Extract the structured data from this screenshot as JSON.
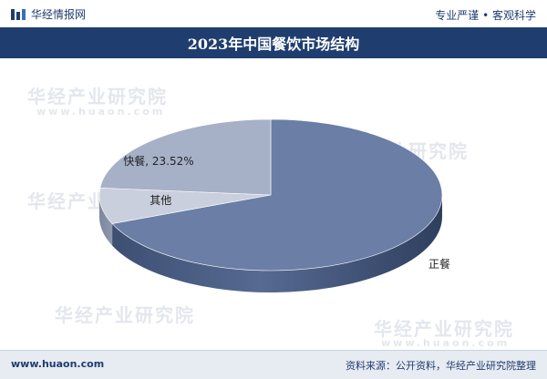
{
  "header": {
    "brand_name": "华经情报网",
    "slogan": "专业严谨 • 客观科学",
    "title": "2023年中国餐饮市场结构"
  },
  "watermark": {
    "cn": "华经产业研究院",
    "en": "www.huaon.com"
  },
  "chart_data": {
    "type": "pie",
    "title": "2023年中国餐饮市场结构",
    "three_d": true,
    "start_angle_deg": -90,
    "direction": "clockwise",
    "slices": [
      {
        "name": "正餐",
        "value": 68.8,
        "label": "正餐",
        "color": "#6a7ea6"
      },
      {
        "name": "其他",
        "value": 7.68,
        "label": "其他",
        "color": "#c9cfdc"
      },
      {
        "name": "快餐",
        "value": 23.52,
        "label": "快餐, 23.52%",
        "color": "#a6b1c8"
      }
    ]
  },
  "footer": {
    "website": "www.huaon.com",
    "source": "资料来源：公开资料，华经产业研究院整理"
  }
}
